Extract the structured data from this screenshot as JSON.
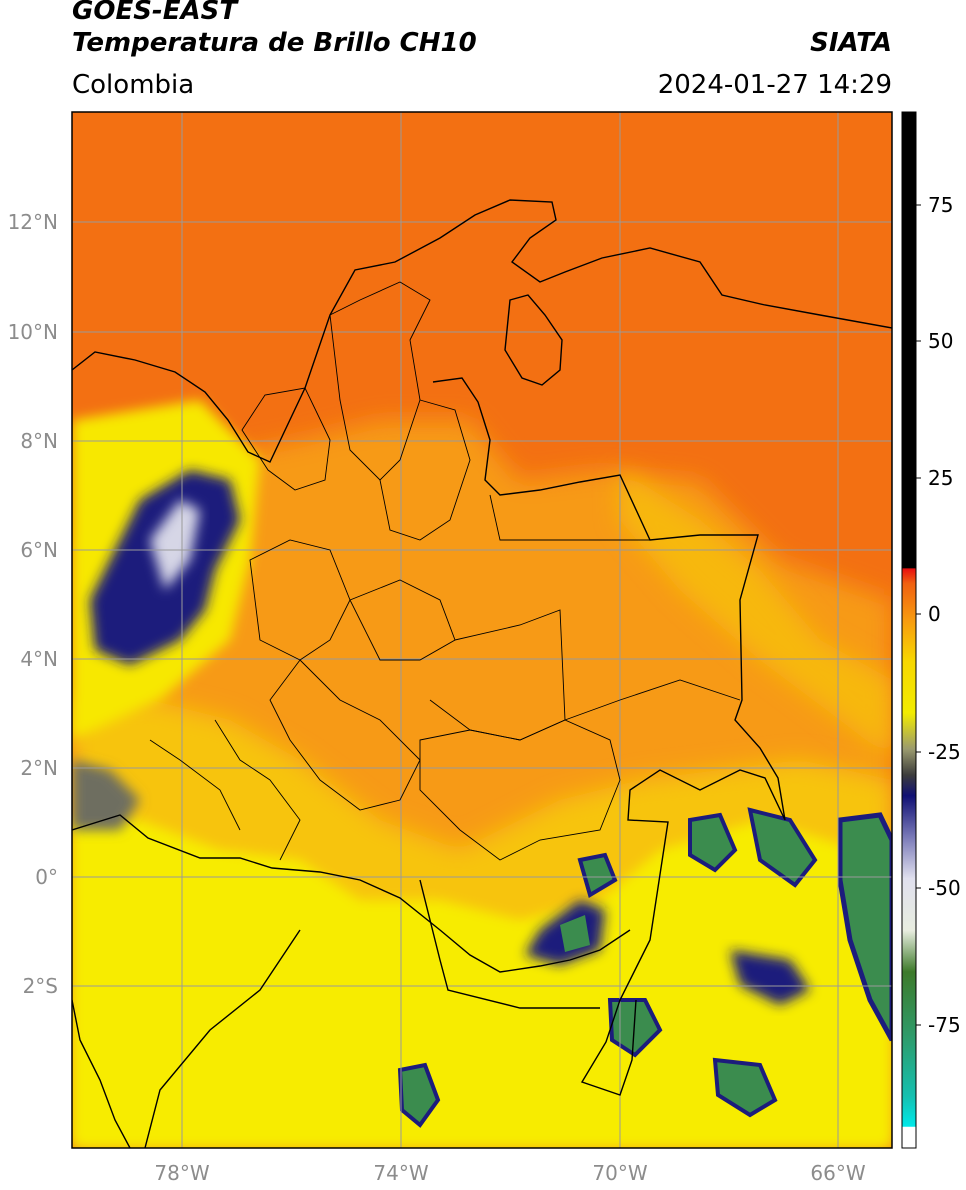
{
  "header": {
    "satellite": "GOES-EAST",
    "product": "Temperatura de Brillo CH10",
    "region": "Colombia",
    "brand": "SIATA",
    "datetime": "2024-01-27 14:29"
  },
  "map": {
    "lon_labels": [
      "78°W",
      "74°W",
      "70°W",
      "66°W"
    ],
    "lat_labels": [
      "12°N",
      "10°N",
      "8°N",
      "6°N",
      "4°N",
      "2°N",
      "0°",
      "2°S"
    ],
    "colors": {
      "warm_background": "#f37012",
      "land": "#f79a16",
      "yellow": "#f7ef05",
      "cloud_dark": "#1c1c7c",
      "cloud_light": "#d6d6e6",
      "cloud_green": "#3b8c4e",
      "border": "#000000",
      "grid": "#9a9a9a"
    }
  },
  "colorbar": {
    "tick_labels": [
      "75",
      "50",
      "25",
      "0",
      "-25",
      "-50",
      "-75"
    ],
    "range": [
      -95,
      90
    ]
  }
}
